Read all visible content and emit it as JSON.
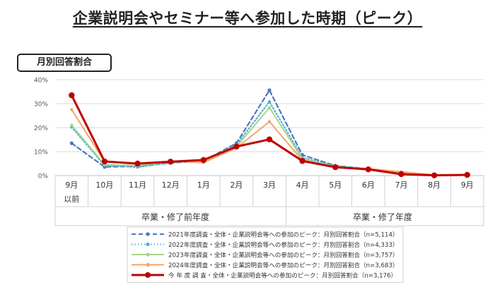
{
  "title": "企業説明会やセミナー等へ参加した時期（ピーク）",
  "badge": "月別回答割合",
  "period_labels": [
    "卒業・修了前年度",
    "卒業・修了年度"
  ],
  "colors": {
    "s2021": "#4a78c2",
    "s2022": "#4fb3c7",
    "s2023": "#a9d48a",
    "s2024": "#f4a36b",
    "current": "#c00000"
  },
  "chart_data": {
    "type": "line",
    "categories": [
      "9月",
      "10月",
      "11月",
      "12月",
      "1月",
      "2月",
      "3月",
      "4月",
      "5月",
      "6月",
      "7月",
      "8月",
      "9月"
    ],
    "category_sublabels": [
      "以前",
      "",
      "",
      "",
      "",
      "",
      "",
      "",
      "",
      "",
      "",
      "",
      ""
    ],
    "yticks": [
      "40%",
      "30%",
      "20%",
      "10%",
      "0%"
    ],
    "ylim": [
      0,
      40
    ],
    "grid": true,
    "legend_position": "bottom",
    "series": [
      {
        "name": "2021年度調査・全体・企業説明会等への参加のピーク：月別回答割合（n=5,114）",
        "style": "dashed",
        "color_key": "s2021",
        "values": [
          13.5,
          3.6,
          3.9,
          5.3,
          6.1,
          13.5,
          35.6,
          8.6,
          4.1,
          2.8,
          1.1,
          0.3,
          0.3
        ]
      },
      {
        "name": "2022年度調査・全体・企業説明会等への参加のピーク：月別回答割合（n=4,333）",
        "style": "dotted",
        "color_key": "s2022",
        "values": [
          20.2,
          4.2,
          3.5,
          5.4,
          6.2,
          12.8,
          30.8,
          7.5,
          4.0,
          2.8,
          1.0,
          0.3,
          0.3
        ]
      },
      {
        "name": "2023年度調査・全体・企業説明会等への参加のピーク：月別回答割合（n=3,757）",
        "style": "solid-star",
        "color_key": "s2023",
        "values": [
          21.0,
          4.6,
          4.2,
          5.8,
          6.0,
          12.0,
          28.3,
          7.0,
          3.7,
          2.6,
          1.4,
          0.3,
          0.3
        ]
      },
      {
        "name": "2024年度調査・全体・企業説明会等への参加のピーク：月別回答割合（n=3,683）",
        "style": "solid-dot",
        "color_key": "s2024",
        "values": [
          27.5,
          5.8,
          5.0,
          6.0,
          5.4,
          11.5,
          22.5,
          6.4,
          3.5,
          2.9,
          1.6,
          0.3,
          0.3
        ]
      },
      {
        "name": "今 年 度 調 査・全体・企業説明会等への参加のピーク：月別回答割合（n=3,176）",
        "style": "bold-dot",
        "color_key": "current",
        "values": [
          33.5,
          5.9,
          5.0,
          5.8,
          6.5,
          12.1,
          15.1,
          6.1,
          3.5,
          2.6,
          0.6,
          0.1,
          0.3
        ]
      }
    ]
  }
}
